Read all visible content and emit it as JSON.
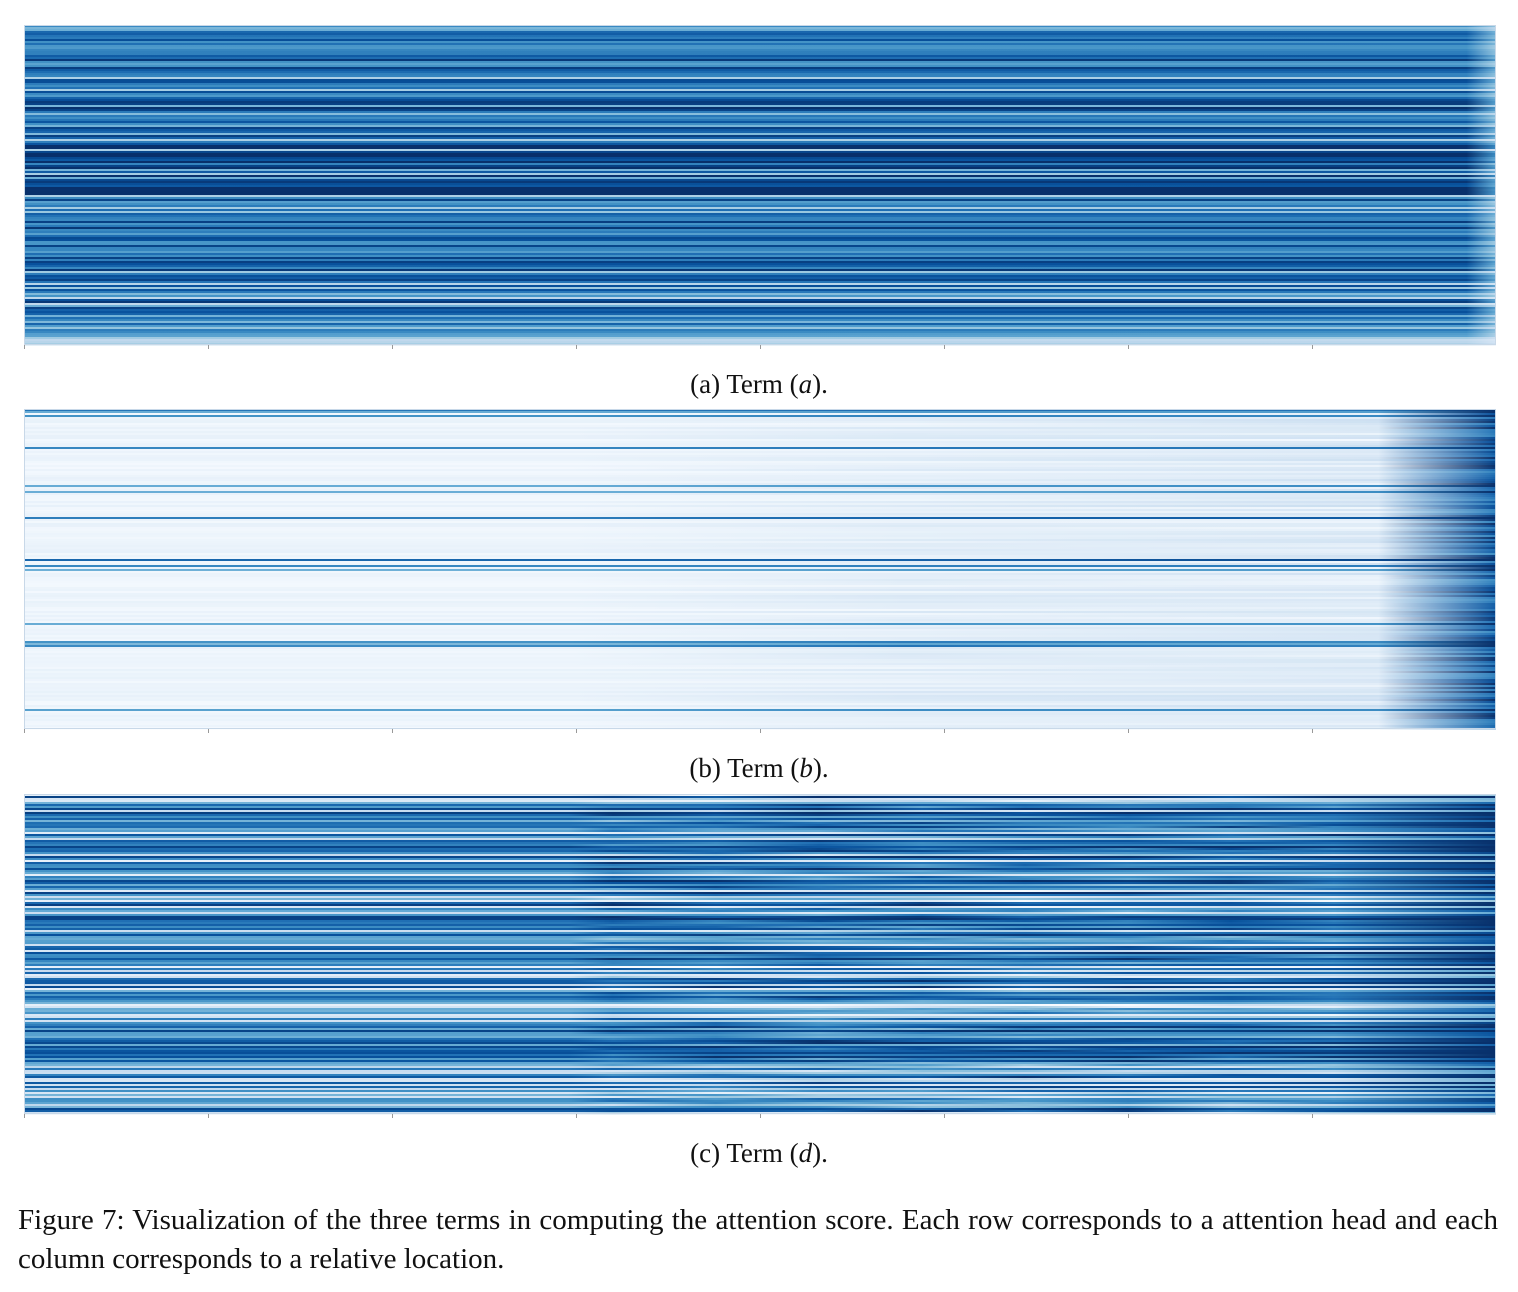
{
  "panels": [
    {
      "id": "a",
      "caption_prefix": "(a) Term (",
      "caption_term": "a",
      "caption_suffix": ").",
      "colormap": "Blues",
      "background_level": "dark"
    },
    {
      "id": "b",
      "caption_prefix": "(b) Term (",
      "caption_term": "b",
      "caption_suffix": ").",
      "colormap": "Blues",
      "background_level": "light"
    },
    {
      "id": "d",
      "caption_prefix": "(c) Term (",
      "caption_term": "d",
      "caption_suffix": ").",
      "colormap": "Blues",
      "background_level": "medium"
    }
  ],
  "figure_caption": "Figure 7: Visualization of the three terms in computing the attention score. Each row corresponds to a attention head and each column corresponds to a relative location.",
  "colors": {
    "dark": "#08306b",
    "mid": "#2171b5",
    "light": "#c6dbef",
    "lightest": "#f7fbff"
  },
  "chart_data": [
    {
      "type": "heatmap",
      "title": "(a) Term (a).",
      "rows_meaning": "attention head",
      "columns_meaning": "relative location",
      "colormap": "Blues",
      "pattern": "horizontal row bands, mostly dark blue, constant across columns"
    },
    {
      "type": "heatmap",
      "title": "(b) Term (b).",
      "rows_meaning": "attention head",
      "columns_meaning": "relative location",
      "colormap": "Blues",
      "pattern": "mostly near-white with a few blue rows; dark blue at the right edge"
    },
    {
      "type": "heatmap",
      "title": "(c) Term (d).",
      "rows_meaning": "attention head",
      "columns_meaning": "relative location",
      "colormap": "Blues",
      "pattern": "medium blue row bands with oscillating texture in right half"
    }
  ]
}
